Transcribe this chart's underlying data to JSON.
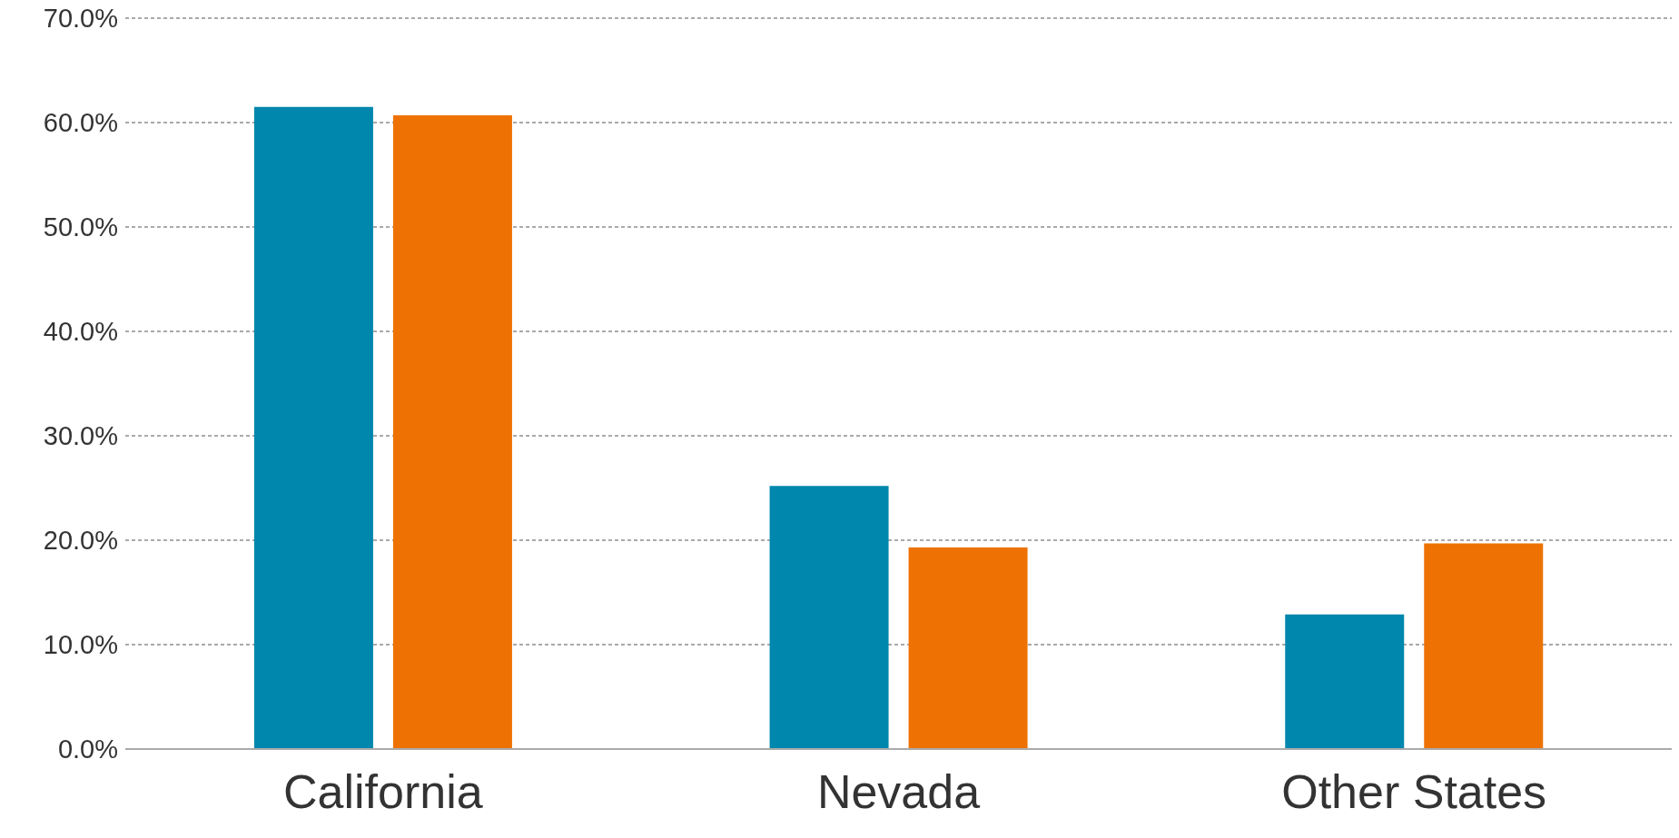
{
  "chart_data": {
    "type": "bar",
    "categories": [
      "California",
      "Nevada",
      "Other States"
    ],
    "series": [
      {
        "color": "#0087ad",
        "values": [
          61.5,
          25.2,
          12.9
        ]
      },
      {
        "color": "#ee7203",
        "values": [
          60.7,
          19.3,
          19.7
        ]
      }
    ],
    "ylim": [
      0,
      70
    ],
    "yticks": [
      {
        "value": 0,
        "label": "0.0%"
      },
      {
        "value": 10,
        "label": "10.0%"
      },
      {
        "value": 20,
        "label": "20.0%"
      },
      {
        "value": 30,
        "label": "30.0%"
      },
      {
        "value": 40,
        "label": "40.0%"
      },
      {
        "value": 50,
        "label": "50.0%"
      },
      {
        "value": 60,
        "label": "60.0%"
      },
      {
        "value": 70,
        "label": "70.0%"
      }
    ],
    "grid": "y"
  }
}
